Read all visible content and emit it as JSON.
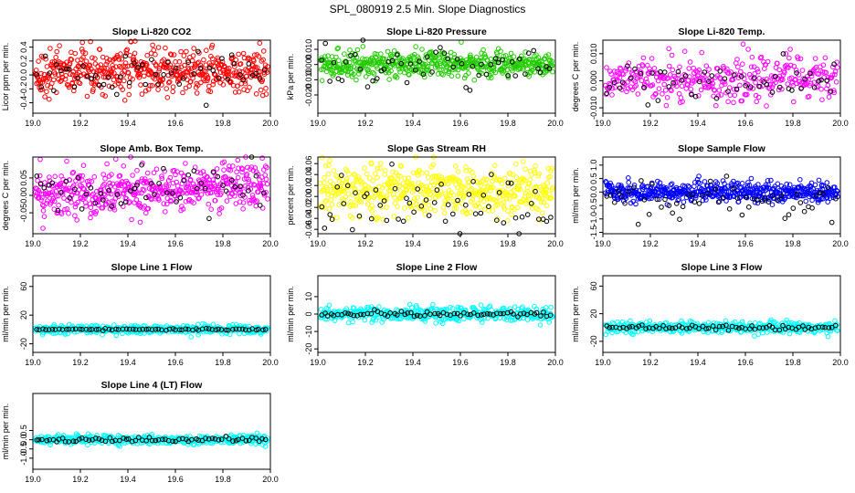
{
  "title": "SPL_080919  2.5 Min. Slope Diagnostics",
  "colors": {
    "black": "#000000",
    "red": "#ff0000",
    "green": "#22cc00",
    "magenta": "#ff00ff",
    "yellow": "#ffff00",
    "blue": "#0000ff",
    "cyan": "#00ffff"
  },
  "chart_data": [
    {
      "type": "scatter",
      "title": "Slope Li-820 CO2",
      "xlabel": "",
      "ylabel": "Licor ppm per min.",
      "xlim": [
        19.0,
        20.0
      ],
      "ylim": [
        -0.55,
        0.5
      ],
      "xticks": [
        "19.0",
        "19.2",
        "19.4",
        "19.6",
        "19.8",
        "20.0"
      ],
      "yticks": [
        {
          "v": -0.4,
          "label": "-0.4"
        },
        {
          "v": -0.2,
          "label": "-0.2"
        },
        {
          "v": 0.0,
          "label": "0.0"
        },
        {
          "v": 0.2,
          "label": "0.2"
        },
        {
          "v": 0.4,
          "label": "0.4"
        }
      ],
      "series": [
        {
          "name": "all",
          "color": "red",
          "n": 520,
          "center": 0.05,
          "spread": 0.16,
          "skew": 0
        },
        {
          "name": "selected",
          "color": "black",
          "n": 55,
          "center": 0.0,
          "spread": 0.15,
          "skew": 0
        }
      ]
    },
    {
      "type": "scatter",
      "title": "Slope Li-820 Pressure",
      "xlabel": "",
      "ylabel": "kPa per min.",
      "xlim": [
        19.0,
        20.0
      ],
      "ylim": [
        -0.032,
        0.016
      ],
      "xticks": [
        "19.0",
        "19.2",
        "19.4",
        "19.6",
        "19.8",
        "20.0"
      ],
      "yticks": [
        {
          "v": -0.02,
          "label": "-0.020"
        },
        {
          "v": -0.01,
          "label": "-0.010"
        },
        {
          "v": 0.0,
          "label": "0.000"
        },
        {
          "v": 0.01,
          "label": "0.010"
        }
      ],
      "series": [
        {
          "name": "all",
          "color": "green",
          "n": 520,
          "center": 0.0,
          "spread": 0.004,
          "skew": 0
        },
        {
          "name": "selected",
          "color": "black",
          "n": 55,
          "center": -0.001,
          "spread": 0.008,
          "skew": 0
        }
      ]
    },
    {
      "type": "scatter",
      "title": "Slope Li-820 Temp.",
      "xlabel": "",
      "ylabel": "degrees C per min.",
      "xlim": [
        19.0,
        20.0
      ],
      "ylim": [
        -0.012,
        0.015
      ],
      "xticks": [
        "19.0",
        "19.2",
        "19.4",
        "19.6",
        "19.8",
        "20.0"
      ],
      "yticks": [
        {
          "v": -0.01,
          "label": "-0.010"
        },
        {
          "v": 0.0,
          "label": "0.000"
        },
        {
          "v": 0.01,
          "label": "0.010"
        }
      ],
      "series": [
        {
          "name": "all",
          "color": "magenta",
          "n": 360,
          "center": 0.001,
          "spread": 0.004,
          "skew": 0
        },
        {
          "name": "selected",
          "color": "black",
          "n": 55,
          "center": 0.0,
          "spread": 0.004,
          "skew": 0
        }
      ]
    },
    {
      "type": "scatter",
      "title": "Slope Amb. Box Temp.",
      "xlabel": "",
      "ylabel": "degrees C per min.",
      "xlim": [
        19.0,
        20.0
      ],
      "ylim": [
        -0.11,
        0.11
      ],
      "xticks": [
        "19.0",
        "19.2",
        "19.4",
        "19.6",
        "19.8",
        "20.0"
      ],
      "yticks": [
        {
          "v": -0.05,
          "label": "-0.05"
        },
        {
          "v": 0.0,
          "label": "0.00"
        },
        {
          "v": 0.05,
          "label": "0.05"
        }
      ],
      "series": [
        {
          "name": "all",
          "color": "magenta",
          "n": 520,
          "center": 0.0,
          "spread": 0.035,
          "skew": 0.03
        },
        {
          "name": "selected",
          "color": "black",
          "n": 55,
          "center": 0.0,
          "spread": 0.03,
          "skew": 0.03
        }
      ]
    },
    {
      "type": "scatter",
      "title": "Slope Gas Stream RH",
      "xlabel": "",
      "ylabel": "percent per min.",
      "xlim": [
        19.0,
        20.0
      ],
      "ylim": [
        -0.068,
        0.072
      ],
      "xticks": [
        "19.0",
        "19.2",
        "19.4",
        "19.6",
        "19.8",
        "20.0"
      ],
      "yticks": [
        {
          "v": -0.06,
          "label": "-0.06"
        },
        {
          "v": -0.04,
          "label": "-0.04"
        },
        {
          "v": -0.02,
          "label": "-0.02"
        },
        {
          "v": 0.0,
          "label": "0.00"
        },
        {
          "v": 0.02,
          "label": "0.02"
        },
        {
          "v": 0.04,
          "label": "0.04"
        },
        {
          "v": 0.06,
          "label": "0.06"
        }
      ],
      "series": [
        {
          "name": "all",
          "color": "yellow",
          "n": 520,
          "center": 0.01,
          "spread": 0.022,
          "skew": 0
        },
        {
          "name": "selected",
          "color": "black",
          "n": 60,
          "center": -0.015,
          "spread": 0.028,
          "skew": 0
        }
      ]
    },
    {
      "type": "scatter",
      "title": "Slope Sample Flow",
      "xlabel": "",
      "ylabel": "ml/min per min.",
      "xlim": [
        19.0,
        20.0
      ],
      "ylim": [
        -1.55,
        1.3
      ],
      "xticks": [
        "19.0",
        "19.2",
        "19.4",
        "19.6",
        "19.8",
        "20.0"
      ],
      "yticks": [
        {
          "v": -1.5,
          "label": "-1.5"
        },
        {
          "v": -1.0,
          "label": "-1.0"
        },
        {
          "v": -0.5,
          "label": "-0.5"
        },
        {
          "v": 0.0,
          "label": "0.0"
        },
        {
          "v": 0.5,
          "label": "0.5"
        },
        {
          "v": 1.0,
          "label": "1.0"
        }
      ],
      "series": [
        {
          "name": "all",
          "color": "blue",
          "n": 520,
          "center": 0.0,
          "spread": 0.18,
          "skew": 0
        },
        {
          "name": "selected",
          "color": "black",
          "n": 60,
          "center": -0.3,
          "spread": 0.4,
          "skew": 0
        }
      ]
    },
    {
      "type": "scatter",
      "title": "Slope Line 1 Flow",
      "xlabel": "",
      "ylabel": "ml/min per min.",
      "xlim": [
        19.0,
        20.0
      ],
      "ylim": [
        -32,
        75
      ],
      "xticks": [
        "19.0",
        "19.2",
        "19.4",
        "19.6",
        "19.8",
        "20.0"
      ],
      "yticks": [
        {
          "v": -20,
          "label": "-20"
        },
        {
          "v": 20,
          "label": "20"
        },
        {
          "v": 60,
          "label": "60"
        }
      ],
      "series": [
        {
          "name": "all",
          "color": "cyan",
          "n": 420,
          "center": 0.0,
          "spread": 3,
          "skew": 0
        },
        {
          "name": "selected",
          "color": "black",
          "n": 70,
          "center": 0.0,
          "spread": 0.6,
          "skew": 0
        }
      ]
    },
    {
      "type": "scatter",
      "title": "Slope Line 2 Flow",
      "xlabel": "",
      "ylabel": "ml/min per min.",
      "xlim": [
        19.0,
        20.0
      ],
      "ylim": [
        -22,
        22
      ],
      "xticks": [
        "19.0",
        "19.2",
        "19.4",
        "19.6",
        "19.8",
        "20.0"
      ],
      "yticks": [
        {
          "v": -20,
          "label": "-20"
        },
        {
          "v": -10,
          "label": "-10"
        },
        {
          "v": 0,
          "label": "0"
        },
        {
          "v": 10,
          "label": "10"
        }
      ],
      "series": [
        {
          "name": "all",
          "color": "cyan",
          "n": 420,
          "center": 0.0,
          "spread": 2,
          "skew": 0
        },
        {
          "name": "selected",
          "color": "black",
          "n": 70,
          "center": 0.0,
          "spread": 0.8,
          "skew": 0
        }
      ]
    },
    {
      "type": "scatter",
      "title": "Slope Line 3 Flow",
      "xlabel": "",
      "ylabel": "ml/min per min.",
      "xlim": [
        19.0,
        20.0
      ],
      "ylim": [
        -36,
        75
      ],
      "xticks": [
        "19.0",
        "19.2",
        "19.4",
        "19.6",
        "19.8",
        "20.0"
      ],
      "yticks": [
        {
          "v": -20,
          "label": "-20"
        },
        {
          "v": 20,
          "label": "20"
        },
        {
          "v": 60,
          "label": "60"
        }
      ],
      "series": [
        {
          "name": "all",
          "color": "cyan",
          "n": 420,
          "center": 0.0,
          "spread": 4,
          "skew": 0
        },
        {
          "name": "selected",
          "color": "black",
          "n": 70,
          "center": 0.0,
          "spread": 1.5,
          "skew": 0
        }
      ]
    },
    {
      "type": "scatter",
      "title": "Slope Line 4 (LT) Flow",
      "xlabel": "",
      "ylabel": "ml/min per min.",
      "xlim": [
        19.0,
        20.0
      ],
      "ylim": [
        -1.6,
        2.5
      ],
      "xticks": [
        "19.0",
        "19.2",
        "19.4",
        "19.6",
        "19.8",
        "20.0"
      ],
      "yticks": [
        {
          "v": -1.0,
          "label": "-1.0"
        },
        {
          "v": -0.5,
          "label": "-0.5"
        },
        {
          "v": 0.0,
          "label": "0.0"
        },
        {
          "v": 0.5,
          "label": "0.5"
        }
      ],
      "series": [
        {
          "name": "all",
          "color": "cyan",
          "n": 420,
          "center": 0.0,
          "spread": 0.12,
          "skew": 0
        },
        {
          "name": "selected",
          "color": "black",
          "n": 70,
          "center": 0.0,
          "spread": 0.08,
          "skew": 0
        }
      ]
    }
  ]
}
